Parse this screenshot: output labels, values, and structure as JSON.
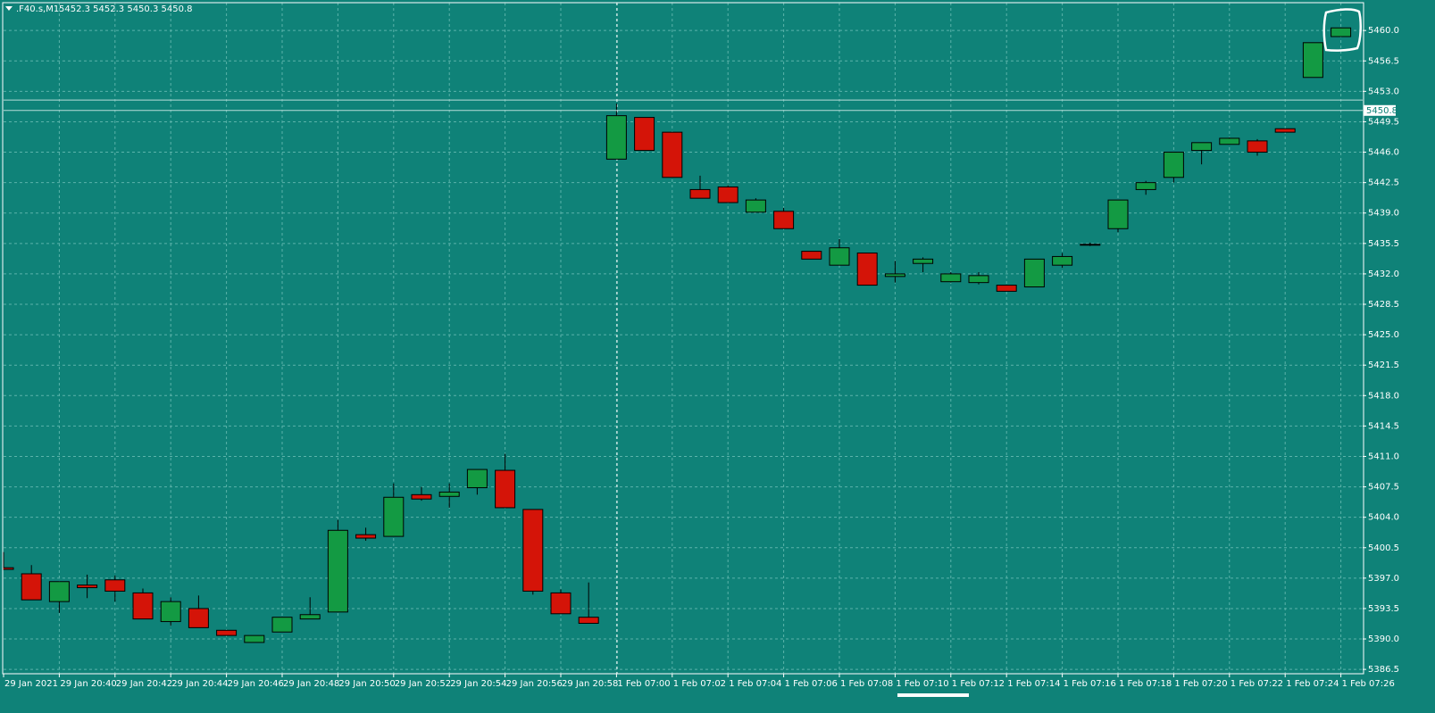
{
  "chart_data": {
    "type": "candlestick",
    "title": ".F40.s,M1",
    "ohlc_label": "5452.3 5452.3 5450.3 5450.8",
    "background": "#0f8278",
    "up_color": "#139a43",
    "down_color": "#d41408",
    "grid": true,
    "categories": [
      "29 Jan 2021",
      null,
      "29 Jan 20:40",
      null,
      "29 Jan 20:42",
      null,
      "29 Jan 20:44",
      null,
      "29 Jan 20:46",
      null,
      "29 Jan 20:48",
      null,
      "29 Jan 20:50",
      null,
      "29 Jan 20:52",
      null,
      "29 Jan 20:54",
      null,
      "29 Jan 20:56",
      null,
      "29 Jan 20:58",
      null,
      "1 Feb 07:00",
      null,
      "1 Feb 07:02",
      null,
      "1 Feb 07:04",
      null,
      "1 Feb 07:06",
      null,
      "1 Feb 07:08",
      null,
      "1 Feb 07:10",
      null,
      "1 Feb 07:12",
      null,
      "1 Feb 07:14",
      null,
      "1 Feb 07:16",
      null,
      "1 Feb 07:18",
      null,
      "1 Feb 07:20",
      null,
      "1 Feb 07:22",
      null,
      "1 Feb 07:24",
      null,
      "1 Feb 07:26"
    ],
    "open": [
      5398.2,
      5397.5,
      5394.3,
      5396.2,
      5396.8,
      5395.3,
      5392.0,
      5393.5,
      5391.0,
      5389.6,
      5390.8,
      5392.3,
      5393.1,
      5402.0,
      5401.8,
      5406.6,
      5406.4,
      5407.4,
      5409.4,
      5404.9,
      5395.3,
      5392.5,
      5445.2,
      5450.0,
      5448.3,
      5441.7,
      5442.0,
      5439.1,
      5439.2,
      5434.6,
      5433.0,
      5434.4,
      5431.7,
      5433.2,
      5431.1,
      5431.0,
      5430.7,
      5430.5,
      5433.0,
      5435.4,
      5437.2,
      5441.7,
      5443.1,
      5446.2,
      5446.9,
      5447.3,
      5448.7,
      5454.6,
      5459.3
    ],
    "high": [
      5400.0,
      5398.5,
      5396.6,
      5397.4,
      5397.3,
      5395.8,
      5394.8,
      5395.0,
      5391.0,
      5390.4,
      5392.5,
      5394.8,
      5403.7,
      5402.8,
      5407.9,
      5407.5,
      5407.9,
      5409.5,
      5411.3,
      5404.9,
      5395.7,
      5396.5,
      5451.6,
      5450.0,
      5448.3,
      5443.3,
      5442.2,
      5440.7,
      5439.6,
      5434.6,
      5436.0,
      5434.4,
      5433.5,
      5433.9,
      5432.2,
      5432.2,
      5430.7,
      5433.7,
      5434.4,
      5435.6,
      5440.5,
      5442.7,
      5446.0,
      5447.1,
      5447.7,
      5447.5,
      5448.7,
      5458.6,
      5460.3
    ],
    "low": [
      5398.0,
      5394.5,
      5393.0,
      5394.7,
      5394.3,
      5392.3,
      5391.5,
      5391.3,
      5390.4,
      5389.6,
      5390.8,
      5392.3,
      5393.1,
      5401.3,
      5401.8,
      5405.9,
      5405.1,
      5406.6,
      5405.1,
      5395.1,
      5392.9,
      5391.8,
      5445.2,
      5446.2,
      5443.1,
      5440.7,
      5440.2,
      5439.1,
      5437.2,
      5433.7,
      5433.0,
      5430.7,
      5431.0,
      5432.2,
      5431.0,
      5430.8,
      5430.0,
      5430.5,
      5432.7,
      5435.2,
      5436.8,
      5441.1,
      5442.5,
      5444.6,
      5446.9,
      5445.6,
      5448.3,
      5454.6,
      5459.3
    ],
    "close": [
      5398.0,
      5394.5,
      5396.6,
      5395.9,
      5395.5,
      5392.3,
      5394.3,
      5391.3,
      5390.4,
      5390.4,
      5392.5,
      5392.8,
      5402.5,
      5401.6,
      5406.3,
      5406.1,
      5406.9,
      5409.5,
      5405.1,
      5395.5,
      5392.9,
      5391.8,
      5450.2,
      5446.2,
      5443.1,
      5440.7,
      5440.2,
      5440.5,
      5437.2,
      5433.7,
      5435.0,
      5430.7,
      5432.0,
      5433.7,
      5432.0,
      5431.8,
      5430.0,
      5433.7,
      5434.0,
      5435.4,
      5440.5,
      5442.5,
      5446.0,
      5447.1,
      5447.6,
      5446.0,
      5448.3,
      5458.6,
      5460.3
    ],
    "bid": 5450.8,
    "ask": 5452.0,
    "ylim": [
      5386.0,
      5463.2
    ],
    "yticks": [
      {
        "value": 5460,
        "label": "5460.0"
      },
      5456.5,
      {
        "value": 5453,
        "label": "5453.0"
      },
      5449.5,
      {
        "value": 5446,
        "label": "5446.0"
      },
      5442.5,
      {
        "value": 5439,
        "label": "5439.0"
      },
      5435.5,
      {
        "value": 5432,
        "label": "5432.0"
      },
      5428.5,
      {
        "value": 5425,
        "label": "5425.0"
      },
      5421.5,
      {
        "value": 5418,
        "label": "5418.0"
      },
      5414.5,
      {
        "value": 5411,
        "label": "5411.0"
      },
      5407.5,
      {
        "value": 5404,
        "label": "5404.0"
      },
      5400.5,
      {
        "value": 5397,
        "label": "5397.0"
      },
      5393.5,
      {
        "value": 5390,
        "label": "5390.0"
      },
      5386.5
    ]
  }
}
